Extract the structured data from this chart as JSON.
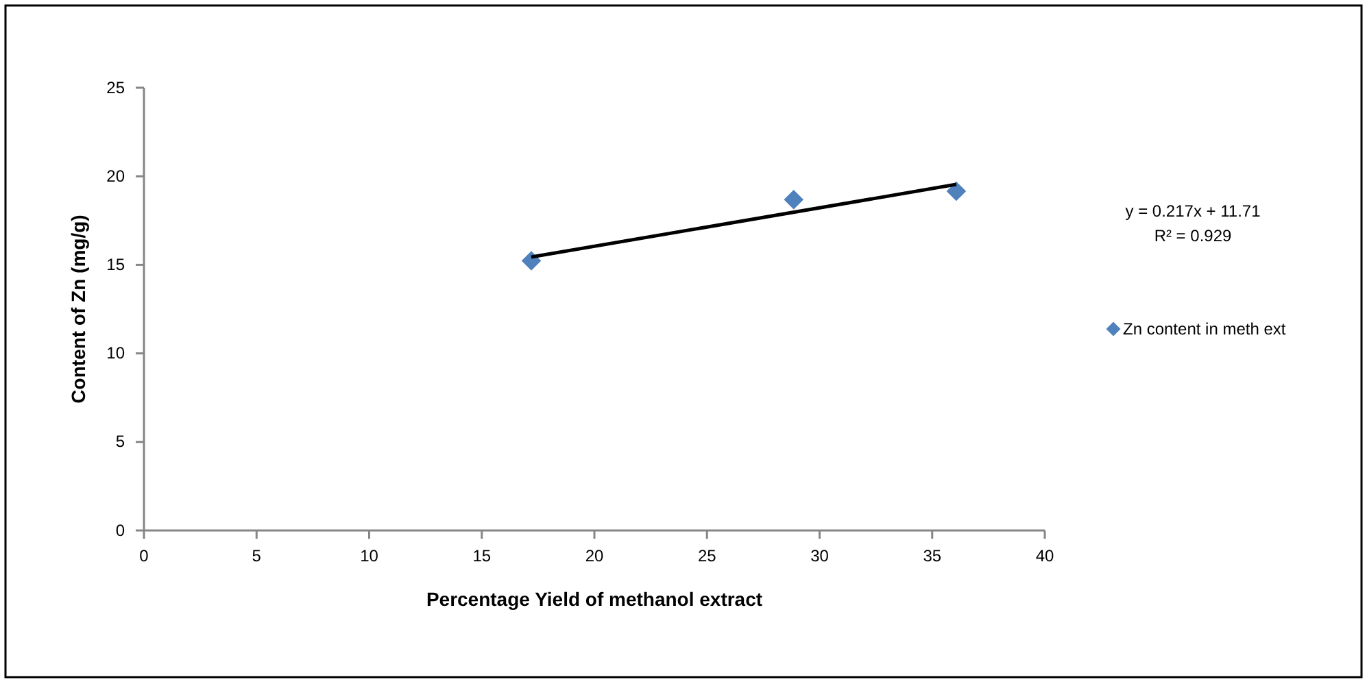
{
  "chart_data": {
    "type": "scatter",
    "xlabel": "Percentage Yield of methanol extract",
    "ylabel": "Content of Zn (mg/g)",
    "xlim": [
      0,
      40
    ],
    "xticks": [
      0,
      5,
      10,
      15,
      20,
      25,
      30,
      35,
      40
    ],
    "ylim": [
      0,
      25
    ],
    "yticks": [
      0,
      5,
      10,
      15,
      20,
      25
    ],
    "grid": false,
    "legend": "right",
    "marker": "diamond",
    "series": [
      {
        "name": "Zn content in meth ext",
        "color": "#4f81bd",
        "x": [
          17.2,
          28.85,
          36.07
        ],
        "values": [
          15.23,
          18.68,
          19.16
        ]
      },
      {
        "type": "line",
        "color": "#000000",
        "x": [
          17.2,
          36.07
        ],
        "values": [
          15.44,
          19.54
        ],
        "line_style": "solid",
        "marker": "none"
      }
    ],
    "annotations": [
      "y = 0.217x + 11.71",
      "R² = 0.929"
    ]
  }
}
